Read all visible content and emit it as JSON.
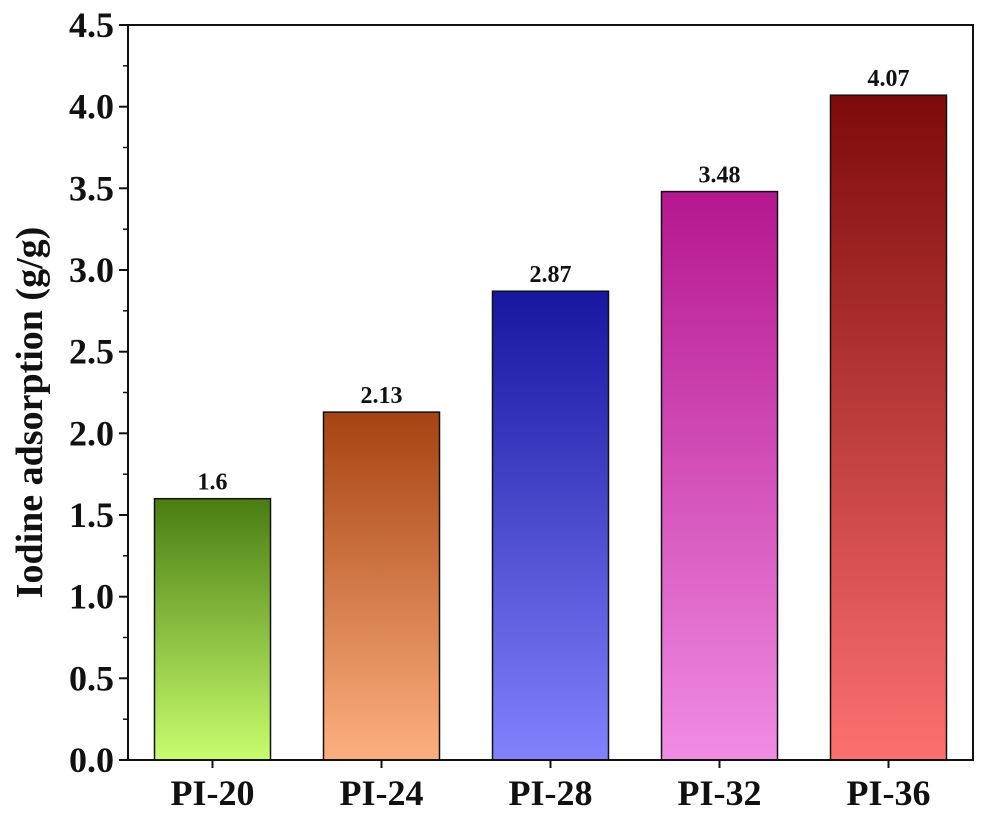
{
  "chart_data": {
    "type": "bar",
    "title": "",
    "xlabel": "",
    "ylabel": "Iodine adsorption  (g/g)",
    "categories": [
      "PI-20",
      "PI-24",
      "PI-28",
      "PI-32",
      "PI-36"
    ],
    "values": [
      1.6,
      2.13,
      2.87,
      3.48,
      4.07
    ],
    "data_labels": [
      "1.6",
      "2.13",
      "2.87",
      "3.48",
      "4.07"
    ],
    "ylim": [
      0,
      4.5
    ],
    "yticks": [
      0.0,
      0.5,
      1.0,
      1.5,
      2.0,
      2.5,
      3.0,
      3.5,
      4.0,
      4.5
    ],
    "ytick_labels": [
      "0.0",
      "0.5",
      "1.0",
      "1.5",
      "2.0",
      "2.5",
      "3.0",
      "3.5",
      "4.0",
      "4.5"
    ],
    "grid": false,
    "legend": "none",
    "bar_gradients": [
      {
        "top": "#4a7d12",
        "bottom": "#c8fd6e"
      },
      {
        "top": "#a64312",
        "bottom": "#fdb07e"
      },
      {
        "top": "#1616a0",
        "bottom": "#8282fd"
      },
      {
        "top": "#b5178f",
        "bottom": "#f08ce3"
      },
      {
        "top": "#7e0a0a",
        "bottom": "#fd7070"
      }
    ]
  }
}
